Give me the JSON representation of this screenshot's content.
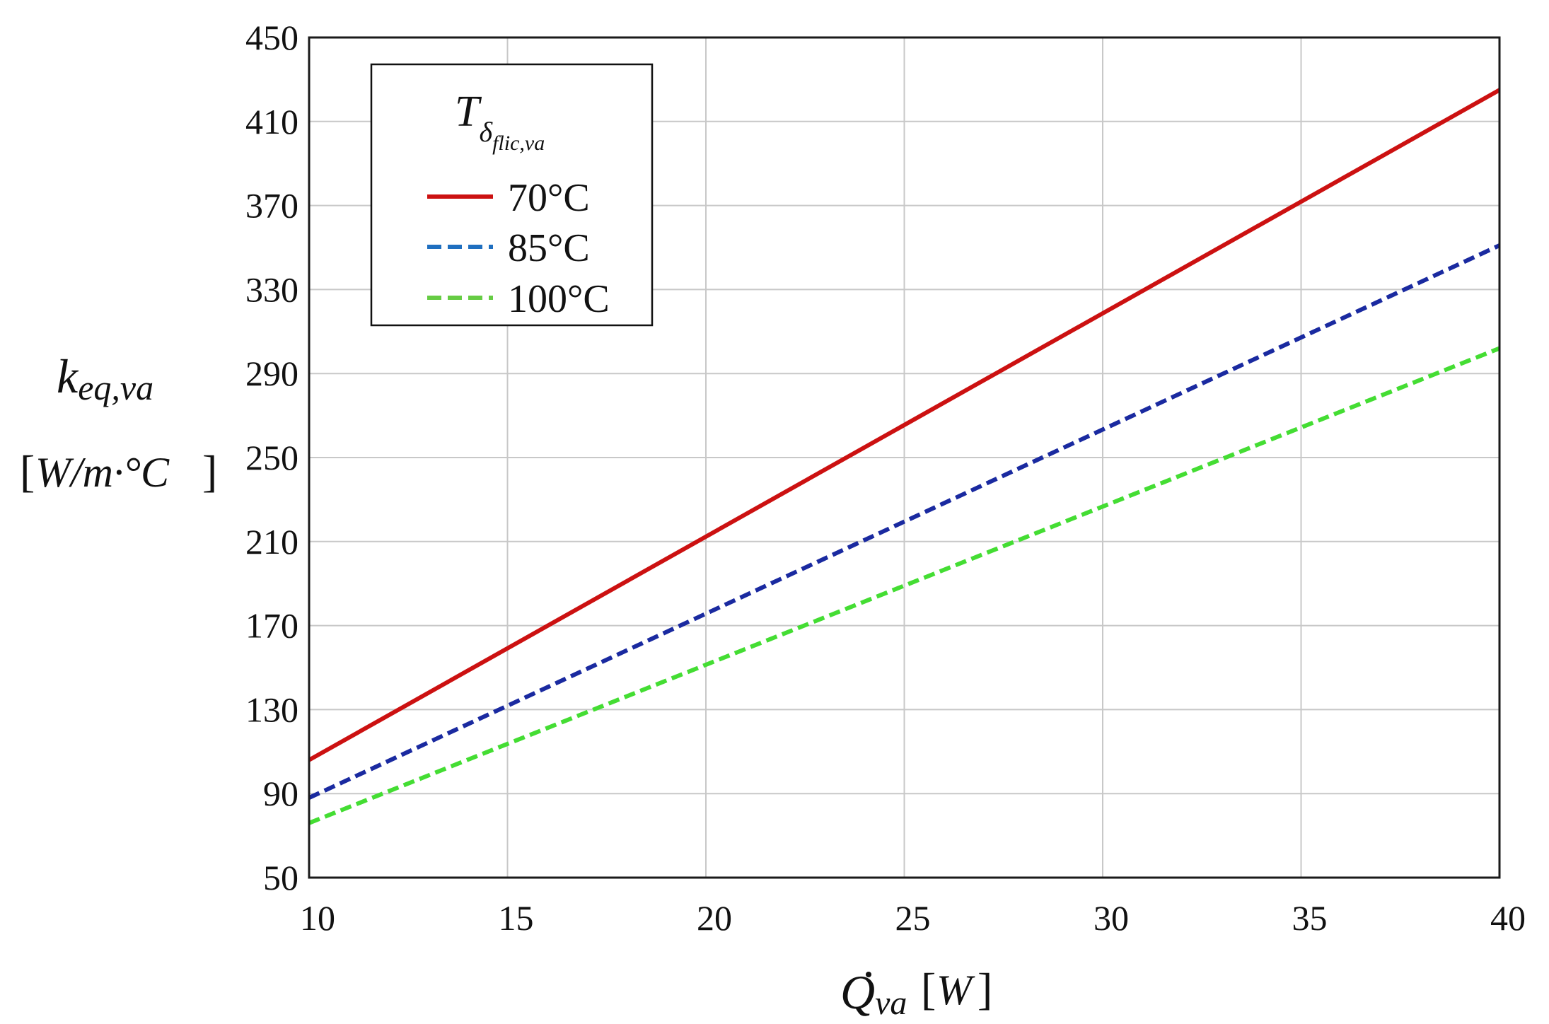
{
  "chart_data": {
    "type": "line",
    "title": "",
    "xlabel": {
      "symbol": "Q",
      "subscript": "va",
      "unit": "W",
      "dot_above": true
    },
    "ylabel": {
      "symbol": "k",
      "subscript": "eq,va",
      "unit": "W/m·°C"
    },
    "xlim": [
      10,
      40
    ],
    "ylim": [
      50,
      450
    ],
    "xticks": [
      10,
      15,
      20,
      25,
      30,
      35,
      40
    ],
    "yticks": [
      50,
      90,
      130,
      170,
      210,
      250,
      290,
      330,
      370,
      410,
      450
    ],
    "grid": true,
    "legend": {
      "placement": "top-left",
      "title": {
        "symbol": "T",
        "subscript": "δ",
        "sub_subscript": "flic,va"
      }
    },
    "series": [
      {
        "name": "70°C",
        "color": "#cc1111",
        "dash": "solid",
        "x": [
          10,
          40
        ],
        "y": [
          106,
          425
        ]
      },
      {
        "name": "85°C",
        "color": "#1a2aa0",
        "legend_color": "#1f6fc0",
        "dash": "dashed",
        "x": [
          10,
          40
        ],
        "y": [
          88,
          351
        ]
      },
      {
        "name": "100°C",
        "color": "#44dd33",
        "legend_color": "#66cc44",
        "dash": "dashed",
        "x": [
          10,
          40
        ],
        "y": [
          76,
          302
        ]
      }
    ]
  }
}
